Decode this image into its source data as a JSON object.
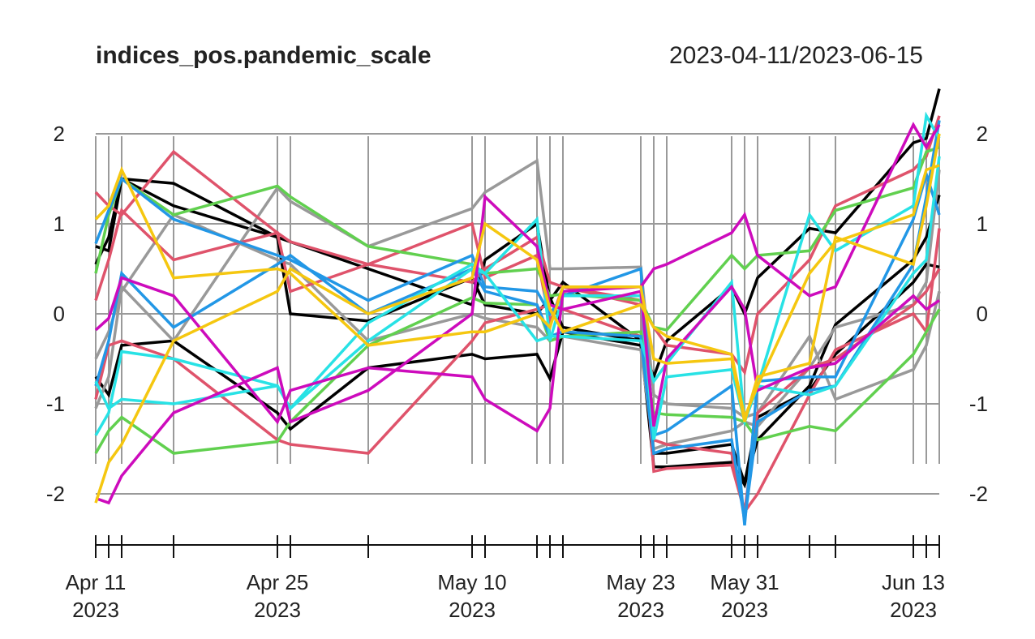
{
  "chart_data": {
    "type": "line",
    "title": "indices_pos.pandemic_scale",
    "subtitle": "2023-04-11/2023-06-15",
    "xlabel": "",
    "ylabel": "",
    "ylim": [
      -2.5,
      2.5
    ],
    "y_ticks": [
      -2,
      -1,
      0,
      1,
      2
    ],
    "y_tick_labels": [
      "-2",
      "-1",
      "0",
      "1",
      "2"
    ],
    "x_axis_labels": [
      {
        "date": "2023-04-11",
        "label": "Apr 11",
        "year": "2023"
      },
      {
        "date": "2023-04-25",
        "label": "Apr 25",
        "year": "2023"
      },
      {
        "date": "2023-05-10",
        "label": "May 10",
        "year": "2023"
      },
      {
        "date": "2023-05-23",
        "label": "May 23",
        "year": "2023"
      },
      {
        "date": "2023-05-31",
        "label": "May 31",
        "year": "2023"
      },
      {
        "date": "2023-06-13",
        "label": "Jun 13",
        "year": "2023"
      }
    ],
    "grid": true,
    "x": [
      "2023-04-11",
      "2023-04-12",
      "2023-04-13",
      "2023-04-17",
      "2023-04-25",
      "2023-04-26",
      "2023-05-02",
      "2023-05-10",
      "2023-05-11",
      "2023-05-15",
      "2023-05-16",
      "2023-05-17",
      "2023-05-23",
      "2023-05-24",
      "2023-05-25",
      "2023-05-30",
      "2023-05-31",
      "2023-06-01",
      "2023-06-05",
      "2023-06-07",
      "2023-06-13",
      "2023-06-14",
      "2023-06-15"
    ],
    "series": [
      {
        "color": "#000000",
        "values": [
          0.55,
          0.85,
          1.5,
          1.45,
          0.85,
          0.8,
          0.5,
          0.1,
          0.6,
          1.0,
          0.15,
          0.35,
          -0.3,
          -0.7,
          -0.3,
          0.3,
          0.0,
          0.4,
          0.95,
          0.9,
          1.9,
          1.95,
          2.5
        ]
      },
      {
        "color": "#000000",
        "values": [
          -0.7,
          -0.9,
          -0.35,
          -0.3,
          -1.1,
          -1.28,
          -0.6,
          -0.45,
          -0.5,
          -0.45,
          -0.72,
          -0.2,
          -0.35,
          -1.55,
          -1.55,
          -1.45,
          -1.88,
          -1.15,
          -0.85,
          -0.45,
          0.35,
          0.55,
          0.52
        ]
      },
      {
        "color": "#000000",
        "values": [
          0.75,
          0.7,
          1.5,
          1.2,
          0.85,
          0.0,
          -0.08,
          0.4,
          0.1,
          0.0,
          0.18,
          -0.15,
          -0.3,
          -1.7,
          -1.7,
          -1.65,
          -1.9,
          -1.4,
          -0.8,
          -0.12,
          0.6,
          0.85,
          1.32
        ]
      },
      {
        "color": "#999999",
        "values": [
          -1.05,
          -0.7,
          0.3,
          -0.3,
          1.4,
          1.25,
          0.75,
          1.17,
          1.35,
          1.7,
          0.5,
          0.5,
          0.52,
          -0.9,
          -1.0,
          -1.05,
          -1.15,
          -1.1,
          -0.25,
          -0.95,
          -0.62,
          -0.35,
          0.25
        ]
      },
      {
        "color": "#999999",
        "values": [
          -0.5,
          -0.2,
          0.25,
          1.1,
          0.6,
          0.55,
          -0.3,
          0.0,
          -0.05,
          -0.15,
          -0.3,
          -0.25,
          -0.4,
          -1.5,
          -1.45,
          -1.3,
          -1.2,
          -1.25,
          -0.6,
          -0.15,
          0.1,
          0.35,
          1.6
        ]
      },
      {
        "color": "#DF536B",
        "values": [
          1.35,
          1.2,
          1.1,
          1.8,
          0.9,
          0.8,
          0.55,
          1.0,
          0.4,
          0.65,
          -0.1,
          0.3,
          0.15,
          -1.75,
          -1.72,
          -1.68,
          -2.2,
          -2.0,
          -0.9,
          -0.4,
          0.0,
          -0.2,
          0.95
        ]
      },
      {
        "color": "#DF536B",
        "values": [
          0.15,
          0.6,
          1.15,
          0.6,
          0.9,
          0.25,
          0.55,
          0.35,
          0.5,
          0.85,
          0.35,
          0.3,
          0.1,
          -0.15,
          -0.35,
          -0.45,
          -0.65,
          0.0,
          0.6,
          1.2,
          1.6,
          1.75,
          2.2
        ]
      },
      {
        "color": "#DF536B",
        "values": [
          -0.95,
          -0.35,
          -0.3,
          -0.5,
          -1.4,
          -1.45,
          -1.55,
          -0.3,
          -0.1,
          0.05,
          0.1,
          0.05,
          -0.25,
          -1.4,
          -1.45,
          -1.55,
          -2.2,
          -1.1,
          -0.6,
          -0.5,
          0.1,
          0.25,
          0.5
        ]
      },
      {
        "color": "#61D04F",
        "values": [
          0.45,
          1.1,
          1.5,
          1.1,
          1.42,
          1.3,
          0.75,
          0.55,
          0.45,
          0.5,
          0.2,
          0.22,
          0.15,
          -0.15,
          -0.18,
          0.65,
          0.5,
          0.65,
          0.7,
          1.15,
          1.4,
          1.8,
          1.85
        ]
      },
      {
        "color": "#61D04F",
        "values": [
          -1.55,
          -1.3,
          -1.15,
          -1.55,
          -1.42,
          -1.2,
          -0.35,
          0.18,
          0.12,
          0.1,
          -0.3,
          -0.25,
          -0.2,
          -1.1,
          -1.12,
          -1.15,
          -1.2,
          -1.4,
          -1.25,
          -1.3,
          -0.45,
          -0.2,
          0.05
        ]
      },
      {
        "color": "#2297E6",
        "values": [
          0.78,
          1.15,
          1.5,
          1.05,
          0.65,
          0.6,
          0.15,
          0.65,
          0.3,
          0.25,
          0.0,
          0.2,
          0.5,
          -1.35,
          -1.3,
          -0.8,
          -2.35,
          -0.75,
          -0.7,
          -0.7,
          1.05,
          1.55,
          1.1
        ]
      },
      {
        "color": "#2297E6",
        "values": [
          -0.8,
          -0.3,
          0.45,
          -0.15,
          0.55,
          0.65,
          0.0,
          0.5,
          0.25,
          0.1,
          -0.25,
          -0.2,
          -0.25,
          -1.55,
          -1.5,
          -1.4,
          -2.3,
          -1.2,
          -0.85,
          -0.8,
          0.55,
          1.3,
          2.15
        ]
      },
      {
        "color": "#28E2E5",
        "values": [
          -1.35,
          -1.1,
          -0.42,
          -0.5,
          -0.8,
          -1.05,
          -0.3,
          0.5,
          0.45,
          1.05,
          -0.3,
          0.2,
          0.2,
          -1.4,
          -0.7,
          -0.62,
          -1.2,
          -0.8,
          -0.9,
          -0.8,
          0.45,
          0.6,
          1.75
        ]
      },
      {
        "color": "#28E2E5",
        "values": [
          -0.75,
          -1.05,
          -0.95,
          -1.0,
          -0.8,
          -1.05,
          -0.1,
          0.55,
          0.45,
          -0.3,
          -0.25,
          -0.25,
          -0.3,
          -0.75,
          -0.55,
          0.35,
          -1.2,
          -0.8,
          1.1,
          0.7,
          1.2,
          2.2,
          1.95
        ]
      },
      {
        "color": "#CD0BBC",
        "values": [
          -0.18,
          -0.05,
          0.4,
          0.2,
          -1.2,
          -0.85,
          -0.6,
          -0.7,
          -0.95,
          -1.3,
          -1.05,
          0.25,
          0.3,
          0.5,
          0.55,
          0.9,
          1.1,
          0.65,
          0.2,
          0.3,
          2.1,
          1.85,
          2.1
        ]
      },
      {
        "color": "#CD0BBC",
        "values": [
          -2.05,
          -2.1,
          -1.8,
          -1.1,
          -0.6,
          -1.2,
          -0.85,
          0.0,
          1.3,
          0.75,
          0.1,
          0.05,
          0.25,
          -1.25,
          -0.5,
          0.3,
          0.05,
          -0.85,
          -0.6,
          -0.55,
          0.2,
          0.05,
          0.15
        ]
      },
      {
        "color": "#F5C710",
        "values": [
          -2.1,
          -1.65,
          -1.45,
          -0.3,
          0.25,
          0.5,
          0.0,
          0.4,
          1.0,
          0.6,
          0.05,
          -0.2,
          0.1,
          -0.15,
          -0.25,
          -0.45,
          -1.15,
          -0.8,
          0.45,
          0.8,
          1.1,
          1.6,
          1.65
        ]
      },
      {
        "color": "#F5C710",
        "values": [
          1.05,
          1.2,
          1.6,
          0.4,
          0.5,
          0.45,
          -0.35,
          -0.2,
          -0.2,
          0.0,
          -0.15,
          0.3,
          0.3,
          -0.5,
          -0.55,
          -0.5,
          -1.2,
          -0.7,
          -0.55,
          0.85,
          0.55,
          1.2,
          2.0
        ]
      }
    ]
  }
}
